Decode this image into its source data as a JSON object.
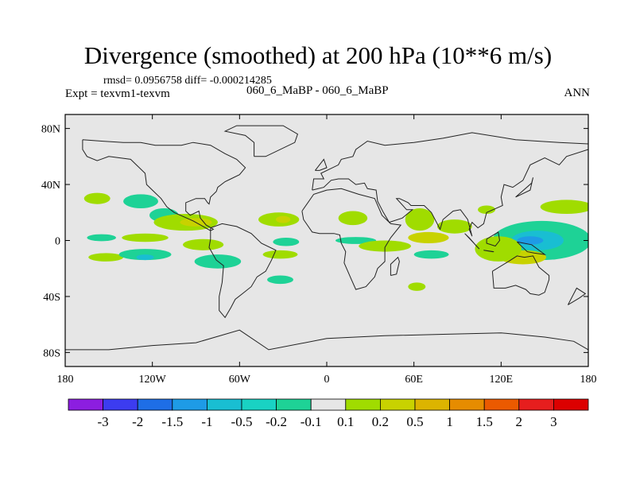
{
  "chart_data": {
    "type": "heatmap",
    "title": "Divergence (smoothed) at 200 hPa (10**6 m/s)",
    "stats": "rmsd= 0.0956758 diff= -0.000214285",
    "experiment": "Expt = texvm1-texvm",
    "cases": "060_6_MaBP - 060_6_MaBP",
    "season": "ANN",
    "x_range": [
      -180,
      180
    ],
    "y_range": [
      -90,
      90
    ],
    "x_ticks": [
      {
        "value": -180,
        "label": "180"
      },
      {
        "value": -120,
        "label": "120W"
      },
      {
        "value": -60,
        "label": "60W"
      },
      {
        "value": 0,
        "label": "0"
      },
      {
        "value": 60,
        "label": "60E"
      },
      {
        "value": 120,
        "label": "120E"
      },
      {
        "value": 180,
        "label": "180"
      }
    ],
    "y_ticks": [
      {
        "value": 80,
        "label": "80N"
      },
      {
        "value": 40,
        "label": "40N"
      },
      {
        "value": 0,
        "label": "0"
      },
      {
        "value": -40,
        "label": "40S"
      },
      {
        "value": -80,
        "label": "80S"
      }
    ],
    "colorbar": {
      "levels": [
        "-3",
        "-2",
        "-1.5",
        "-1",
        "-0.5",
        "-0.2",
        "-0.1",
        "0.1",
        "0.2",
        "0.5",
        "1",
        "1.5",
        "2",
        "3"
      ],
      "colors": [
        "#8c1ee0",
        "#3c3cf0",
        "#1e6ee6",
        "#1e9be6",
        "#19bed2",
        "#19d2c3",
        "#1ed296",
        "#e6e6e6",
        "#a0dc00",
        "#c8d200",
        "#dcb400",
        "#e68c00",
        "#eb5a00",
        "#e61e1e",
        "#dc0000"
      ]
    },
    "background_value_color": "#e6e6e6",
    "regions": [
      {
        "lon": -158,
        "lat": 30,
        "rlon": 9,
        "rlat": 4,
        "color": "#a0dc00"
      },
      {
        "lon": -128,
        "lat": 28,
        "rlon": 12,
        "rlat": 5,
        "color": "#1ed296"
      },
      {
        "lon": -112,
        "lat": 18,
        "rlon": 10,
        "rlat": 5,
        "color": "#1ed296"
      },
      {
        "lon": -155,
        "lat": 2,
        "rlon": 10,
        "rlat": 2.5,
        "color": "#1ed296"
      },
      {
        "lon": -125,
        "lat": 2,
        "rlon": 16,
        "rlat": 3,
        "color": "#a0dc00"
      },
      {
        "lon": -152,
        "lat": -12,
        "rlon": 12,
        "rlat": 3,
        "color": "#a0dc00"
      },
      {
        "lon": -125,
        "lat": -10,
        "rlon": 18,
        "rlat": 4,
        "color": "#1ed296"
      },
      {
        "lon": -125,
        "lat": -12,
        "rlon": 6,
        "rlat": 2,
        "color": "#19bed2"
      },
      {
        "lon": -97,
        "lat": 13,
        "rlon": 22,
        "rlat": 6,
        "color": "#a0dc00"
      },
      {
        "lon": -90,
        "lat": 13,
        "rlon": 11,
        "rlat": 3,
        "color": "#c8d200"
      },
      {
        "lon": -85,
        "lat": -3,
        "rlon": 14,
        "rlat": 4,
        "color": "#a0dc00"
      },
      {
        "lon": -75,
        "lat": -15,
        "rlon": 16,
        "rlat": 5,
        "color": "#1ed296"
      },
      {
        "lon": -33,
        "lat": 15,
        "rlon": 14,
        "rlat": 5,
        "color": "#a0dc00"
      },
      {
        "lon": -30,
        "lat": 15,
        "rlon": 5,
        "rlat": 2.5,
        "color": "#c8d200"
      },
      {
        "lon": -28,
        "lat": -1,
        "rlon": 9,
        "rlat": 3,
        "color": "#1ed296"
      },
      {
        "lon": -32,
        "lat": -10,
        "rlon": 12,
        "rlat": 3,
        "color": "#a0dc00"
      },
      {
        "lon": -32,
        "lat": -28,
        "rlon": 9,
        "rlat": 3,
        "color": "#1ed296"
      },
      {
        "lon": 18,
        "lat": 16,
        "rlon": 10,
        "rlat": 5,
        "color": "#a0dc00"
      },
      {
        "lon": 20,
        "lat": 0,
        "rlon": 14,
        "rlat": 2.5,
        "color": "#1ed296"
      },
      {
        "lon": 40,
        "lat": -4,
        "rlon": 18,
        "rlat": 4,
        "color": "#a0dc00"
      },
      {
        "lon": 64,
        "lat": 15,
        "rlon": 10,
        "rlat": 8,
        "color": "#a0dc00"
      },
      {
        "lon": 70,
        "lat": 2,
        "rlon": 14,
        "rlat": 4,
        "color": "#c8d200"
      },
      {
        "lon": 88,
        "lat": 10,
        "rlon": 12,
        "rlat": 5,
        "color": "#a0dc00"
      },
      {
        "lon": 72,
        "lat": -10,
        "rlon": 12,
        "rlat": 3,
        "color": "#1ed296"
      },
      {
        "lon": 62,
        "lat": -33,
        "rlon": 6,
        "rlat": 3,
        "color": "#a0dc00"
      },
      {
        "lon": 148,
        "lat": 0,
        "rlon": 34,
        "rlat": 14,
        "color": "#1ed296"
      },
      {
        "lon": 145,
        "lat": 0,
        "rlon": 18,
        "rlat": 7,
        "color": "#19bed2"
      },
      {
        "lon": 140,
        "lat": 0,
        "rlon": 9,
        "rlat": 3,
        "color": "#1e9be6"
      },
      {
        "lon": 135,
        "lat": -12,
        "rlon": 16,
        "rlat": 5,
        "color": "#c8d200"
      },
      {
        "lon": 118,
        "lat": -6,
        "rlon": 16,
        "rlat": 9,
        "color": "#a0dc00"
      },
      {
        "lon": 165,
        "lat": 24,
        "rlon": 18,
        "rlat": 5,
        "color": "#a0dc00"
      },
      {
        "lon": 110,
        "lat": 22,
        "rlon": 6,
        "rlat": 3,
        "color": "#a0dc00"
      }
    ],
    "coastlines": [
      [
        [
          -168,
          72
        ],
        [
          -155,
          71
        ],
        [
          -140,
          70
        ],
        [
          -128,
          70
        ],
        [
          -118,
          68
        ],
        [
          -100,
          68
        ],
        [
          -92,
          70
        ],
        [
          -80,
          68
        ],
        [
          -70,
          62
        ],
        [
          -62,
          58
        ],
        [
          -56,
          52
        ],
        [
          -60,
          47
        ],
        [
          -66,
          44
        ],
        [
          -70,
          42
        ],
        [
          -75,
          38
        ],
        [
          -76,
          35
        ],
        [
          -80,
          31
        ],
        [
          -81,
          26
        ],
        [
          -82,
          27
        ],
        [
          -84,
          30
        ],
        [
          -90,
          30
        ],
        [
          -97,
          27
        ],
        [
          -97,
          21
        ],
        [
          -94,
          18
        ],
        [
          -88,
          21
        ],
        [
          -87,
          16
        ],
        [
          -83,
          11
        ],
        [
          -78,
          8
        ],
        [
          -80,
          7
        ],
        [
          -85,
          10
        ],
        [
          -92,
          14
        ],
        [
          -105,
          20
        ],
        [
          -110,
          24
        ],
        [
          -114,
          30
        ],
        [
          -117,
          33
        ],
        [
          -124,
          40
        ],
        [
          -125,
          48
        ],
        [
          -135,
          58
        ],
        [
          -150,
          60
        ],
        [
          -158,
          57
        ],
        [
          -165,
          60
        ],
        [
          -168,
          65
        ],
        [
          -168,
          72
        ]
      ],
      [
        [
          -80,
          9
        ],
        [
          -72,
          12
        ],
        [
          -62,
          10
        ],
        [
          -52,
          5
        ],
        [
          -45,
          -2
        ],
        [
          -35,
          -7
        ],
        [
          -38,
          -14
        ],
        [
          -42,
          -22
        ],
        [
          -48,
          -26
        ],
        [
          -52,
          -33
        ],
        [
          -58,
          -38
        ],
        [
          -63,
          -42
        ],
        [
          -66,
          -48
        ],
        [
          -70,
          -55
        ],
        [
          -74,
          -50
        ],
        [
          -74,
          -40
        ],
        [
          -72,
          -30
        ],
        [
          -71,
          -18
        ],
        [
          -76,
          -14
        ],
        [
          -81,
          -5
        ],
        [
          -80,
          1
        ],
        [
          -80,
          9
        ]
      ],
      [
        [
          -17,
          21
        ],
        [
          -16,
          15
        ],
        [
          -10,
          6
        ],
        [
          -5,
          5
        ],
        [
          5,
          5
        ],
        [
          9,
          4
        ],
        [
          10,
          -2
        ],
        [
          13,
          -8
        ],
        [
          12,
          -16
        ],
        [
          17,
          -28
        ],
        [
          20,
          -35
        ],
        [
          27,
          -33
        ],
        [
          33,
          -26
        ],
        [
          35,
          -20
        ],
        [
          40,
          -15
        ],
        [
          40,
          -5
        ],
        [
          44,
          2
        ],
        [
          51,
          11
        ],
        [
          44,
          12
        ],
        [
          38,
          18
        ],
        [
          33,
          30
        ],
        [
          22,
          33
        ],
        [
          10,
          37
        ],
        [
          0,
          36
        ],
        [
          -9,
          33
        ],
        [
          -17,
          21
        ]
      ],
      [
        [
          -10,
          36
        ],
        [
          -9,
          44
        ],
        [
          -2,
          44
        ],
        [
          -4,
          48
        ],
        [
          2,
          51
        ],
        [
          8,
          54
        ],
        [
          10,
          58
        ],
        [
          18,
          60
        ],
        [
          20,
          65
        ],
        [
          28,
          71
        ],
        [
          40,
          68
        ],
        [
          60,
          70
        ],
        [
          80,
          73
        ],
        [
          100,
          77
        ],
        [
          130,
          72
        ],
        [
          160,
          70
        ],
        [
          180,
          69
        ]
      ],
      [
        [
          180,
          65
        ],
        [
          165,
          60
        ],
        [
          160,
          54
        ],
        [
          150,
          59
        ],
        [
          140,
          54
        ],
        [
          135,
          43
        ],
        [
          128,
          38
        ],
        [
          122,
          40
        ],
        [
          120,
          31
        ],
        [
          121,
          25
        ],
        [
          110,
          20
        ],
        [
          108,
          12
        ],
        [
          104,
          9
        ],
        [
          100,
          13
        ],
        [
          98,
          8
        ],
        [
          100,
          3
        ],
        [
          97,
          15
        ],
        [
          92,
          22
        ],
        [
          87,
          21
        ],
        [
          80,
          15
        ],
        [
          78,
          8
        ],
        [
          72,
          20
        ],
        [
          67,
          25
        ],
        [
          58,
          25
        ],
        [
          56,
          27
        ],
        [
          50,
          30
        ],
        [
          48,
          30
        ],
        [
          55,
          22
        ],
        [
          59,
          22
        ],
        [
          52,
          16
        ],
        [
          43,
          13
        ],
        [
          39,
          20
        ],
        [
          35,
          28
        ],
        [
          34,
          36
        ],
        [
          28,
          37
        ],
        [
          26,
          41
        ],
        [
          20,
          40
        ],
        [
          15,
          44
        ],
        [
          12,
          44
        ],
        [
          8,
          44
        ],
        [
          3,
          43
        ],
        [
          -2,
          38
        ],
        [
          -10,
          36
        ]
      ],
      [
        [
          114,
          -22
        ],
        [
          115,
          -34
        ],
        [
          123,
          -34
        ],
        [
          130,
          -32
        ],
        [
          137,
          -35
        ],
        [
          140,
          -38
        ],
        [
          146,
          -39
        ],
        [
          150,
          -37
        ],
        [
          153,
          -28
        ],
        [
          153,
          -25
        ],
        [
          146,
          -19
        ],
        [
          142,
          -11
        ],
        [
          136,
          -12
        ],
        [
          131,
          -11
        ],
        [
          125,
          -15
        ],
        [
          114,
          -22
        ]
      ],
      [
        [
          -50,
          60
        ],
        [
          -42,
          60
        ],
        [
          -22,
          70
        ],
        [
          -20,
          76
        ],
        [
          -30,
          82
        ],
        [
          -50,
          82
        ],
        [
          -62,
          82
        ],
        [
          -70,
          78
        ],
        [
          -56,
          75
        ],
        [
          -50,
          70
        ],
        [
          -50,
          60
        ]
      ],
      [
        [
          95,
          5
        ],
        [
          105,
          -6
        ],
        [
          103,
          -4
        ],
        [
          98,
          2
        ],
        [
          95,
          5
        ]
      ],
      [
        [
          108,
          -7
        ],
        [
          114,
          -8
        ],
        [
          115,
          -8
        ],
        [
          108,
          -7
        ]
      ],
      [
        [
          110,
          1
        ],
        [
          118,
          6
        ],
        [
          119,
          0
        ],
        [
          116,
          -4
        ],
        [
          110,
          -2
        ],
        [
          110,
          1
        ]
      ],
      [
        [
          131,
          -1
        ],
        [
          141,
          -3
        ],
        [
          150,
          -10
        ],
        [
          143,
          -9
        ],
        [
          138,
          -8
        ],
        [
          131,
          -1
        ]
      ],
      [
        [
          130,
          31
        ],
        [
          141,
          41
        ],
        [
          142,
          45
        ],
        [
          140,
          36
        ],
        [
          130,
          31
        ]
      ],
      [
        [
          44,
          -25
        ],
        [
          48,
          -24
        ],
        [
          50,
          -15
        ],
        [
          49,
          -12
        ],
        [
          44,
          -17
        ],
        [
          44,
          -25
        ]
      ],
      [
        [
          166,
          -46
        ],
        [
          174,
          -41
        ],
        [
          178,
          -38
        ],
        [
          172,
          -34
        ],
        [
          166,
          -46
        ]
      ],
      [
        [
          -8,
          50
        ],
        [
          -2,
          58
        ],
        [
          0,
          52
        ],
        [
          -5,
          50
        ],
        [
          -8,
          50
        ]
      ],
      [
        [
          -180,
          -78
        ],
        [
          -150,
          -78
        ],
        [
          -120,
          -75
        ],
        [
          -90,
          -73
        ],
        [
          -60,
          -64
        ],
        [
          -40,
          -78
        ],
        [
          0,
          -70
        ],
        [
          40,
          -68
        ],
        [
          80,
          -67
        ],
        [
          120,
          -66
        ],
        [
          150,
          -69
        ],
        [
          170,
          -72
        ],
        [
          180,
          -78
        ]
      ]
    ]
  }
}
